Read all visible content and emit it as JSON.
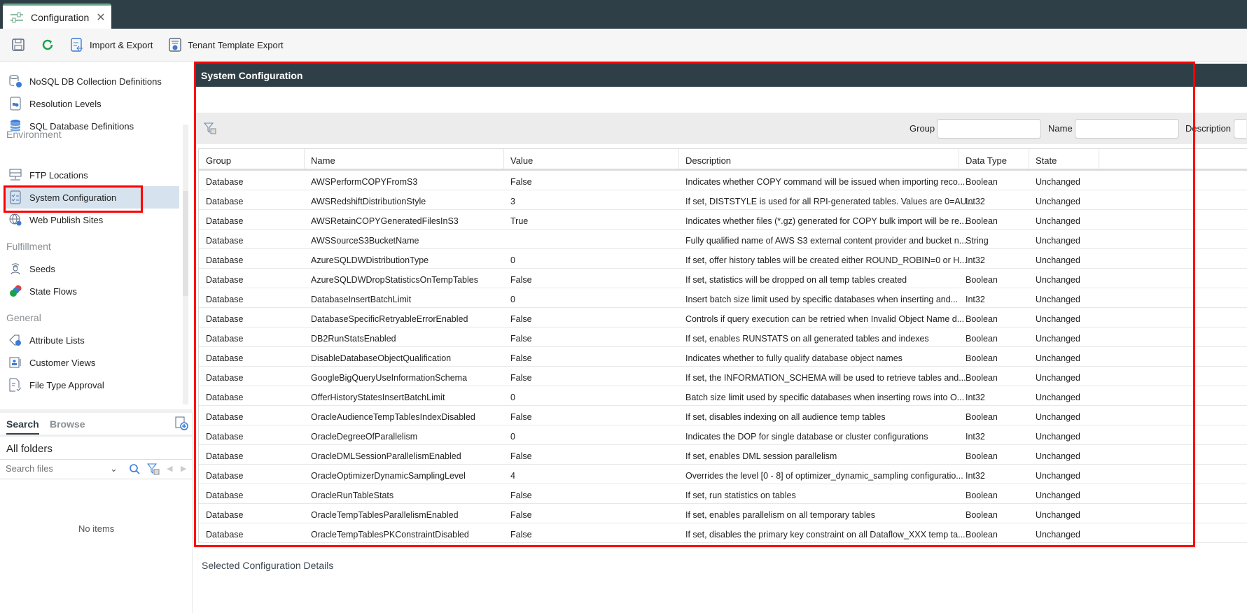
{
  "tab": {
    "title": "Configuration",
    "icon": "sliders-icon"
  },
  "toolbar": {
    "save": "save-icon",
    "refresh": "refresh-icon",
    "import_export": "Import & Export",
    "tenant_export": "Tenant Template Export"
  },
  "sidebar": {
    "items_top": [
      "NoSQL DB Collection Definitions",
      "Resolution Levels",
      "SQL Database Definitions"
    ],
    "sections": [
      {
        "title": "Environment",
        "items": [
          "FTP Locations",
          "System Configuration",
          "Web Publish Sites"
        ]
      },
      {
        "title": "Fulfillment",
        "items": [
          "Seeds",
          "State Flows"
        ]
      },
      {
        "title": "General",
        "items": [
          "Attribute Lists",
          "Customer Views",
          "File Type Approval"
        ]
      }
    ],
    "selected": "System Configuration"
  },
  "files": {
    "tabs": [
      "Search",
      "Browse"
    ],
    "active_tab": "Search",
    "folder": "All folders",
    "search_placeholder": "Search files",
    "empty": "No items"
  },
  "panel": {
    "title": "System Configuration",
    "filters": {
      "group": "Group",
      "name": "Name",
      "description": "Description"
    }
  },
  "table": {
    "columns": [
      "Group",
      "Name",
      "Value",
      "Description",
      "Data Type",
      "State"
    ],
    "rows": [
      [
        "Database",
        "AWSPerformCOPYFromS3",
        "False",
        "Indicates whether COPY command will be issued when importing reco...",
        "Boolean",
        "Unchanged"
      ],
      [
        "Database",
        "AWSRedshiftDistributionStyle",
        "3",
        "If set, DISTSTYLE is used for all RPI-generated tables. Values are 0=AU...",
        "Int32",
        "Unchanged"
      ],
      [
        "Database",
        "AWSRetainCOPYGeneratedFilesInS3",
        "True",
        "Indicates whether files (*.gz) generated for COPY bulk import will be re...",
        "Boolean",
        "Unchanged"
      ],
      [
        "Database",
        "AWSSourceS3BucketName",
        "",
        "Fully qualified name of AWS S3 external content provider and bucket n...",
        "String",
        "Unchanged"
      ],
      [
        "Database",
        "AzureSQLDWDistributionType",
        "0",
        "If set, offer history tables will be created either ROUND_ROBIN=0 or H...",
        "Int32",
        "Unchanged"
      ],
      [
        "Database",
        "AzureSQLDWDropStatisticsOnTempTables",
        "False",
        "If set, statistics will be dropped on all temp tables created",
        "Boolean",
        "Unchanged"
      ],
      [
        "Database",
        "DatabaseInsertBatchLimit",
        "0",
        "Insert batch size limit used by specific databases when inserting and...",
        "Int32",
        "Unchanged"
      ],
      [
        "Database",
        "DatabaseSpecificRetryableErrorEnabled",
        "False",
        "Controls if query execution can be retried when Invalid Object Name d...",
        "Boolean",
        "Unchanged"
      ],
      [
        "Database",
        "DB2RunStatsEnabled",
        "False",
        "If set, enables RUNSTATS on all generated tables and indexes",
        "Boolean",
        "Unchanged"
      ],
      [
        "Database",
        "DisableDatabaseObjectQualification",
        "False",
        "Indicates whether to fully qualify database object names",
        "Boolean",
        "Unchanged"
      ],
      [
        "Database",
        "GoogleBigQueryUseInformationSchema",
        "False",
        "If set, the INFORMATION_SCHEMA will be used to retrieve tables and...",
        "Boolean",
        "Unchanged"
      ],
      [
        "Database",
        "OfferHistoryStatesInsertBatchLimit",
        "0",
        "Batch size limit used by specific databases when inserting rows into O...",
        "Int32",
        "Unchanged"
      ],
      [
        "Database",
        "OracleAudienceTempTablesIndexDisabled",
        "False",
        "If set, disables indexing on all audience temp tables",
        "Boolean",
        "Unchanged"
      ],
      [
        "Database",
        "OracleDegreeOfParallelism",
        "0",
        "Indicates the DOP for single database or cluster configurations",
        "Int32",
        "Unchanged"
      ],
      [
        "Database",
        "OracleDMLSessionParallelismEnabled",
        "False",
        "If set, enables DML session parallelism",
        "Boolean",
        "Unchanged"
      ],
      [
        "Database",
        "OracleOptimizerDynamicSamplingLevel",
        "4",
        "Overrides the level [0 - 8] of optimizer_dynamic_sampling configuratio...",
        "Int32",
        "Unchanged"
      ],
      [
        "Database",
        "OracleRunTableStats",
        "False",
        "If set, run statistics on tables",
        "Boolean",
        "Unchanged"
      ],
      [
        "Database",
        "OracleTempTablesParallelismEnabled",
        "False",
        "If set, enables parallelism on all temporary tables",
        "Boolean",
        "Unchanged"
      ],
      [
        "Database",
        "OracleTempTablesPKConstraintDisabled",
        "False",
        "If set, disables the primary key constraint on all Dataflow_XXX temp ta...",
        "Boolean",
        "Unchanged"
      ]
    ]
  },
  "details": {
    "title": "Selected Configuration Details"
  },
  "colors": {
    "header_bg": "#2f3f47",
    "selected_bg": "#d6e3ee",
    "highlight": "#ff0000",
    "accent": "#3a7bd5"
  }
}
